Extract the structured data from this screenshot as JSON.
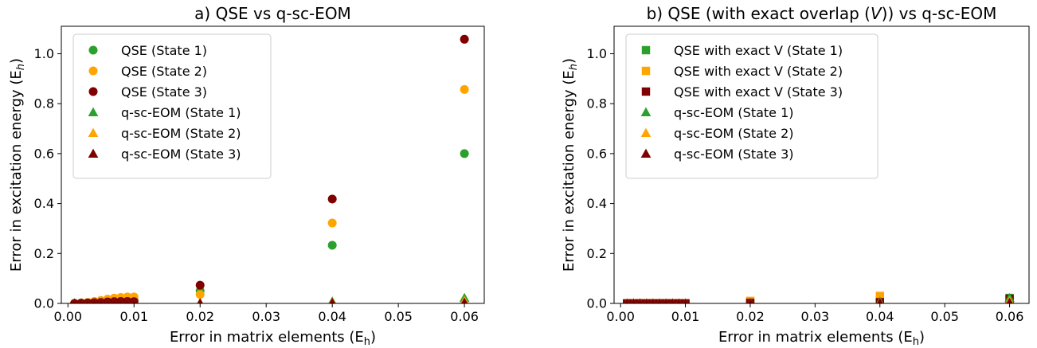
{
  "chart_data": [
    {
      "type": "scatter",
      "title": "a) QSE vs q-sc-EOM",
      "xlabel": "Error in matrix elements (E",
      "xlabel_sub": "h",
      "xlabel_suffix": ")",
      "ylabel": "Error in excitation energy (E",
      "ylabel_sub": "h",
      "ylabel_suffix": ")",
      "xlim": [
        -0.001,
        0.063
      ],
      "ylim": [
        0.0,
        1.11
      ],
      "xticks": [
        0.0,
        0.01,
        0.02,
        0.03,
        0.04,
        0.05,
        0.06
      ],
      "xtick_labels": [
        "0.00",
        "0.01",
        "0.02",
        "0.03",
        "0.04",
        "0.05",
        "0.06"
      ],
      "yticks": [
        0.0,
        0.2,
        0.4,
        0.6,
        0.8,
        1.0
      ],
      "ytick_labels": [
        "0.0",
        "0.2",
        "0.4",
        "0.6",
        "0.8",
        "1.0"
      ],
      "legend_position": "top-left",
      "series": [
        {
          "name": "QSE (State 1)",
          "color": "#2ca02c",
          "marker": "circle",
          "x": [
            0.001,
            0.002,
            0.003,
            0.004,
            0.005,
            0.006,
            0.007,
            0.008,
            0.009,
            0.01,
            0.02,
            0.04,
            0.06
          ],
          "y": [
            0.0,
            0.001,
            0.002,
            0.003,
            0.005,
            0.007,
            0.009,
            0.011,
            0.012,
            0.014,
            0.05,
            0.233,
            0.6
          ]
        },
        {
          "name": "QSE (State 2)",
          "color": "#ffa500",
          "marker": "circle",
          "x": [
            0.001,
            0.002,
            0.003,
            0.004,
            0.005,
            0.006,
            0.007,
            0.008,
            0.009,
            0.01,
            0.02,
            0.04,
            0.06
          ],
          "y": [
            0.0,
            0.002,
            0.004,
            0.008,
            0.012,
            0.017,
            0.021,
            0.024,
            0.026,
            0.026,
            0.036,
            0.322,
            0.857
          ]
        },
        {
          "name": "QSE (State 3)",
          "color": "#800000",
          "marker": "circle",
          "x": [
            0.001,
            0.002,
            0.003,
            0.004,
            0.005,
            0.006,
            0.007,
            0.008,
            0.009,
            0.01,
            0.02,
            0.04,
            0.06
          ],
          "y": [
            0.0,
            0.001,
            0.002,
            0.003,
            0.004,
            0.006,
            0.007,
            0.008,
            0.008,
            0.007,
            0.073,
            0.418,
            1.058
          ]
        },
        {
          "name": "q-sc-EOM (State 1)",
          "color": "#2ca02c",
          "marker": "triangle",
          "x": [
            0.001,
            0.002,
            0.003,
            0.004,
            0.005,
            0.006,
            0.007,
            0.008,
            0.009,
            0.01,
            0.02,
            0.04,
            0.06
          ],
          "y": [
            0.0,
            0.0,
            0.0,
            0.0,
            0.0,
            0.0,
            0.0,
            0.0,
            0.0,
            0.0,
            0.002,
            0.008,
            0.022
          ]
        },
        {
          "name": "q-sc-EOM (State 2)",
          "color": "#ffa500",
          "marker": "triangle",
          "x": [
            0.001,
            0.002,
            0.003,
            0.004,
            0.005,
            0.006,
            0.007,
            0.008,
            0.009,
            0.01,
            0.02,
            0.04,
            0.06
          ],
          "y": [
            0.0,
            0.0,
            0.0,
            0.0,
            0.0,
            0.0,
            0.0,
            0.0,
            0.0,
            0.0,
            0.001,
            0.004,
            0.01
          ]
        },
        {
          "name": "q-sc-EOM (State 3)",
          "color": "#800000",
          "marker": "triangle",
          "x": [
            0.001,
            0.002,
            0.003,
            0.004,
            0.005,
            0.006,
            0.007,
            0.008,
            0.009,
            0.01,
            0.02,
            0.04,
            0.06
          ],
          "y": [
            0.0,
            0.0,
            0.0,
            0.0,
            0.0,
            0.0,
            0.0,
            0.0,
            0.0,
            0.0,
            0.001,
            0.002,
            0.003
          ]
        }
      ]
    },
    {
      "type": "scatter",
      "title": "b) QSE (with exact overlap (",
      "title_italic": "V",
      "title_suffix": ")) vs q-sc-EOM",
      "xlabel": "Error in matrix elements (E",
      "xlabel_sub": "h",
      "xlabel_suffix": ")",
      "ylabel": "Error in excitation energy (E",
      "ylabel_sub": "h",
      "ylabel_suffix": ")",
      "xlim": [
        -0.001,
        0.063
      ],
      "ylim": [
        0.0,
        1.11
      ],
      "xticks": [
        0.0,
        0.01,
        0.02,
        0.03,
        0.04,
        0.05,
        0.06
      ],
      "xtick_labels": [
        "0.00",
        "0.01",
        "0.02",
        "0.03",
        "0.04",
        "0.05",
        "0.06"
      ],
      "yticks": [
        0.0,
        0.2,
        0.4,
        0.6,
        0.8,
        1.0
      ],
      "ytick_labels": [
        "0.0",
        "0.2",
        "0.4",
        "0.6",
        "0.8",
        "1.0"
      ],
      "legend_position": "top-left",
      "series": [
        {
          "name": "QSE with exact V (State 1)",
          "color": "#2ca02c",
          "marker": "square",
          "x": [
            0.001,
            0.002,
            0.003,
            0.004,
            0.005,
            0.006,
            0.007,
            0.008,
            0.009,
            0.01,
            0.02,
            0.04,
            0.06
          ],
          "y": [
            0.0,
            0.0,
            0.0,
            0.0,
            0.0,
            0.0,
            0.0,
            0.0,
            0.0,
            0.0,
            0.005,
            0.012,
            0.022
          ]
        },
        {
          "name": "QSE with exact V (State 2)",
          "color": "#ffa500",
          "marker": "square",
          "x": [
            0.001,
            0.002,
            0.003,
            0.004,
            0.005,
            0.006,
            0.007,
            0.008,
            0.009,
            0.01,
            0.02,
            0.04,
            0.06
          ],
          "y": [
            0.0,
            0.0,
            0.0,
            0.0,
            0.0,
            0.0,
            0.0,
            0.0,
            0.0,
            0.0,
            0.01,
            0.03,
            0.015
          ]
        },
        {
          "name": "QSE with exact V (State 3)",
          "color": "#800000",
          "marker": "square",
          "x": [
            0.001,
            0.002,
            0.003,
            0.004,
            0.005,
            0.006,
            0.007,
            0.008,
            0.009,
            0.01,
            0.02,
            0.04,
            0.06
          ],
          "y": [
            0.0,
            0.0,
            0.0,
            0.0,
            0.0,
            0.0,
            0.0,
            0.0,
            0.0,
            0.0,
            0.002,
            0.005,
            0.018
          ]
        },
        {
          "name": "q-sc-EOM (State 1)",
          "color": "#2ca02c",
          "marker": "triangle",
          "x": [
            0.001,
            0.002,
            0.003,
            0.004,
            0.005,
            0.006,
            0.007,
            0.008,
            0.009,
            0.01,
            0.02,
            0.04,
            0.06
          ],
          "y": [
            0.0,
            0.0,
            0.0,
            0.0,
            0.0,
            0.0,
            0.0,
            0.0,
            0.0,
            0.0,
            0.002,
            0.008,
            0.022
          ]
        },
        {
          "name": "q-sc-EOM (State 2)",
          "color": "#ffa500",
          "marker": "triangle",
          "x": [
            0.001,
            0.002,
            0.003,
            0.004,
            0.005,
            0.006,
            0.007,
            0.008,
            0.009,
            0.01,
            0.02,
            0.04,
            0.06
          ],
          "y": [
            0.0,
            0.0,
            0.0,
            0.0,
            0.0,
            0.0,
            0.0,
            0.0,
            0.0,
            0.0,
            0.001,
            0.004,
            0.01
          ]
        },
        {
          "name": "q-sc-EOM (State 3)",
          "color": "#800000",
          "marker": "triangle",
          "x": [
            0.001,
            0.002,
            0.003,
            0.004,
            0.005,
            0.006,
            0.007,
            0.008,
            0.009,
            0.01,
            0.02,
            0.04,
            0.06
          ],
          "y": [
            0.0,
            0.0,
            0.0,
            0.0,
            0.0,
            0.0,
            0.0,
            0.0,
            0.0,
            0.0,
            0.001,
            0.002,
            0.003
          ]
        }
      ]
    }
  ]
}
